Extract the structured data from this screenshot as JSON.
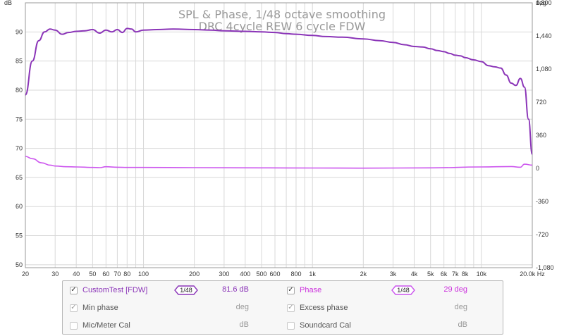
{
  "chart_data": {
    "type": "line",
    "title": "SPL & Phase, 1/48 octave smoothing",
    "subtitle": "DRC 4cycle REW 6 cycle FDW",
    "y_left_unit": "dB",
    "y_right_unit": "deg",
    "x_unit": "Hz",
    "x_scale": "log",
    "xlim": [
      20,
      20000
    ],
    "ylim_left": [
      49.5,
      95
    ],
    "ylim_right": [
      -1080,
      1800
    ],
    "y_left_ticks": [
      "50",
      "55",
      "60",
      "65",
      "70",
      "75",
      "80",
      "85",
      "90"
    ],
    "y_right_ticks": [
      "-1,080",
      "-720",
      "-360",
      "0",
      "360",
      "720",
      "1,080",
      "1,440",
      "1,800"
    ],
    "x_ticks": [
      {
        "v": 20,
        "l": "20"
      },
      {
        "v": 30,
        "l": "30"
      },
      {
        "v": 40,
        "l": "40"
      },
      {
        "v": 50,
        "l": "50"
      },
      {
        "v": 60,
        "l": "60"
      },
      {
        "v": 70,
        "l": "70"
      },
      {
        "v": 80,
        "l": "80"
      },
      {
        "v": 90,
        "l": ""
      },
      {
        "v": 100,
        "l": "100"
      },
      {
        "v": 200,
        "l": "200"
      },
      {
        "v": 300,
        "l": "300"
      },
      {
        "v": 400,
        "l": "400"
      },
      {
        "v": 500,
        "l": "500"
      },
      {
        "v": 600,
        "l": "600"
      },
      {
        "v": 700,
        "l": ""
      },
      {
        "v": 800,
        "l": "800"
      },
      {
        "v": 900,
        "l": ""
      },
      {
        "v": 1000,
        "l": "1k"
      },
      {
        "v": 2000,
        "l": "2k"
      },
      {
        "v": 3000,
        "l": "3k"
      },
      {
        "v": 4000,
        "l": "4k"
      },
      {
        "v": 5000,
        "l": "5k"
      },
      {
        "v": 6000,
        "l": "6k"
      },
      {
        "v": 7000,
        "l": "7k"
      },
      {
        "v": 8000,
        "l": "8k"
      },
      {
        "v": 9000,
        "l": ""
      },
      {
        "v": 10000,
        "l": "10k"
      },
      {
        "v": 20000,
        "l": "20.0k Hz"
      }
    ],
    "series": [
      {
        "name": "CustomTest [FDW]",
        "axis": "left",
        "color": "#8b35b8",
        "x": [
          20,
          22,
          24,
          26,
          28,
          30,
          33,
          36,
          40,
          45,
          50,
          55,
          60,
          65,
          70,
          75,
          80,
          85,
          90,
          100,
          120,
          150,
          200,
          250,
          300,
          400,
          500,
          600,
          700,
          800,
          1000,
          1200,
          1500,
          2000,
          2500,
          3000,
          3500,
          4000,
          4500,
          5000,
          5500,
          6000,
          6500,
          7000,
          7500,
          8000,
          9000,
          10000,
          11000,
          12000,
          13000,
          14000,
          15000,
          16000,
          17000,
          18000,
          19000,
          20000
        ],
        "y": [
          79.2,
          85.0,
          88.5,
          90.0,
          90.5,
          90.3,
          89.6,
          89.9,
          90.1,
          90.2,
          90.4,
          89.8,
          90.3,
          90.0,
          90.4,
          89.9,
          90.6,
          90.5,
          90.0,
          90.3,
          90.4,
          90.5,
          90.4,
          90.3,
          90.2,
          90.1,
          90.0,
          89.9,
          89.7,
          89.6,
          89.4,
          89.2,
          89.1,
          88.8,
          88.5,
          88.2,
          87.8,
          87.5,
          87.4,
          87.1,
          86.8,
          86.6,
          86.3,
          86.0,
          85.9,
          85.6,
          85.2,
          84.9,
          84.2,
          84.0,
          83.8,
          82.6,
          81.2,
          80.8,
          82.0,
          80.5,
          75.0,
          69.0
        ]
      },
      {
        "name": "Phase",
        "axis": "right",
        "color": "#cc55ee",
        "x": [
          20,
          22,
          25,
          28,
          30,
          35,
          40,
          50,
          55,
          60,
          70,
          80,
          100,
          200,
          500,
          1000,
          2000,
          5000,
          10000,
          15000,
          17000,
          18000,
          20000
        ],
        "y": [
          130,
          105,
          60,
          35,
          25,
          18,
          15,
          10,
          8,
          18,
          12,
          10,
          10,
          8,
          5,
          4,
          2,
          5,
          15,
          20,
          12,
          45,
          35
        ]
      }
    ]
  },
  "legend": {
    "rows": [
      {
        "left_checked": true,
        "left_label": "CustomTest [FDW]",
        "left_smoothing": "1/48",
        "left_value": "81.6 dB",
        "right_checked": true,
        "right_label": "Phase",
        "right_smoothing": "1/48",
        "right_value": "29 deg"
      },
      {
        "left_checked": true,
        "left_label": "Min phase",
        "left_value": "deg",
        "right_checked": true,
        "right_label": "Excess phase",
        "right_value": "deg"
      },
      {
        "left_checked": false,
        "left_label": "Mic/Meter Cal",
        "left_value": "dB",
        "right_checked": false,
        "right_label": "Soundcard Cal",
        "right_value": "dB"
      }
    ],
    "colors": {
      "spl": "#8b35b8",
      "phase": "#cc55ee",
      "dim": "#999999"
    }
  }
}
